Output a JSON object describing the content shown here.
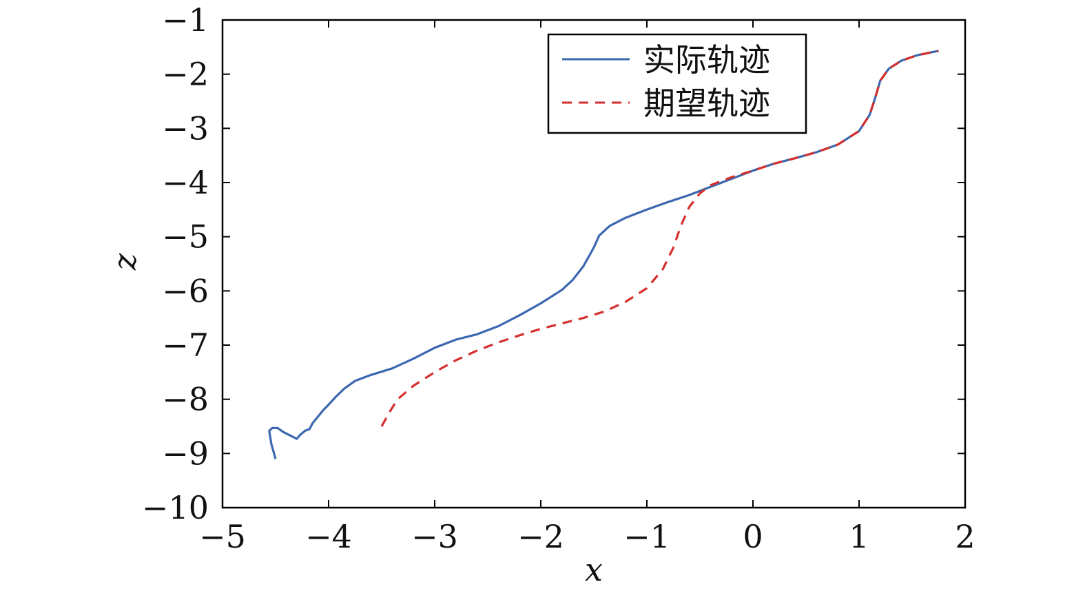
{
  "chart_data": {
    "type": "line",
    "title": "",
    "xlabel": "x",
    "ylabel": "z",
    "xlim": [
      -5,
      2
    ],
    "ylim": [
      -10,
      -1
    ],
    "xticks": [
      -5,
      -4,
      -3,
      -2,
      -1,
      0,
      1,
      2
    ],
    "yticks": [
      -1,
      -2,
      -3,
      -4,
      -5,
      -6,
      -7,
      -8,
      -9,
      -10
    ],
    "xtick_labels": [
      "−5",
      "−4",
      "−3",
      "−2",
      "−1",
      "0",
      "1",
      "2"
    ],
    "ytick_labels": [
      "−1",
      "−2",
      "−3",
      "−4",
      "−5",
      "−6",
      "−7",
      "−8",
      "−9",
      "−10"
    ],
    "grid": false,
    "legend_position": "top-right",
    "series": [
      {
        "name": "实际轨迹",
        "color": "#3a67b0",
        "style": "solid",
        "points": [
          [
            -4.5,
            -9.1
          ],
          [
            -4.54,
            -8.82
          ],
          [
            -4.56,
            -8.58
          ],
          [
            -4.53,
            -8.53
          ],
          [
            -4.48,
            -8.53
          ],
          [
            -4.43,
            -8.6
          ],
          [
            -4.35,
            -8.68
          ],
          [
            -4.3,
            -8.73
          ],
          [
            -4.27,
            -8.66
          ],
          [
            -4.22,
            -8.58
          ],
          [
            -4.18,
            -8.55
          ],
          [
            -4.15,
            -8.44
          ],
          [
            -4.1,
            -8.32
          ],
          [
            -4.05,
            -8.2
          ],
          [
            -4.0,
            -8.1
          ],
          [
            -3.93,
            -7.95
          ],
          [
            -3.85,
            -7.8
          ],
          [
            -3.75,
            -7.66
          ],
          [
            -3.6,
            -7.55
          ],
          [
            -3.4,
            -7.43
          ],
          [
            -3.2,
            -7.25
          ],
          [
            -3.0,
            -7.05
          ],
          [
            -2.8,
            -6.9
          ],
          [
            -2.6,
            -6.8
          ],
          [
            -2.4,
            -6.65
          ],
          [
            -2.2,
            -6.45
          ],
          [
            -2.0,
            -6.23
          ],
          [
            -1.8,
            -5.98
          ],
          [
            -1.7,
            -5.8
          ],
          [
            -1.6,
            -5.55
          ],
          [
            -1.5,
            -5.2
          ],
          [
            -1.45,
            -4.98
          ],
          [
            -1.35,
            -4.8
          ],
          [
            -1.2,
            -4.65
          ],
          [
            -1.0,
            -4.5
          ],
          [
            -0.8,
            -4.36
          ],
          [
            -0.6,
            -4.23
          ],
          [
            -0.4,
            -4.08
          ],
          [
            -0.2,
            -3.93
          ],
          [
            0.0,
            -3.78
          ],
          [
            0.2,
            -3.65
          ],
          [
            0.4,
            -3.55
          ],
          [
            0.6,
            -3.44
          ],
          [
            0.8,
            -3.3
          ],
          [
            1.0,
            -3.05
          ],
          [
            1.1,
            -2.75
          ],
          [
            1.15,
            -2.45
          ],
          [
            1.2,
            -2.12
          ],
          [
            1.28,
            -1.9
          ],
          [
            1.4,
            -1.75
          ],
          [
            1.55,
            -1.65
          ],
          [
            1.75,
            -1.57
          ]
        ]
      },
      {
        "name": "期望轨迹",
        "color": "#d62f2f",
        "style": "dashed",
        "points": [
          [
            -3.5,
            -8.5
          ],
          [
            -3.43,
            -8.25
          ],
          [
            -3.35,
            -8.0
          ],
          [
            -3.2,
            -7.75
          ],
          [
            -3.0,
            -7.5
          ],
          [
            -2.8,
            -7.28
          ],
          [
            -2.6,
            -7.1
          ],
          [
            -2.4,
            -6.95
          ],
          [
            -2.2,
            -6.82
          ],
          [
            -2.0,
            -6.7
          ],
          [
            -1.8,
            -6.6
          ],
          [
            -1.6,
            -6.5
          ],
          [
            -1.4,
            -6.38
          ],
          [
            -1.2,
            -6.2
          ],
          [
            -1.0,
            -5.95
          ],
          [
            -0.85,
            -5.6
          ],
          [
            -0.75,
            -5.2
          ],
          [
            -0.68,
            -4.8
          ],
          [
            -0.6,
            -4.45
          ],
          [
            -0.5,
            -4.2
          ],
          [
            -0.4,
            -4.05
          ],
          [
            -0.2,
            -3.9
          ],
          [
            0.0,
            -3.78
          ],
          [
            0.2,
            -3.65
          ],
          [
            0.4,
            -3.55
          ],
          [
            0.6,
            -3.44
          ],
          [
            0.8,
            -3.3
          ],
          [
            1.0,
            -3.05
          ],
          [
            1.1,
            -2.75
          ],
          [
            1.15,
            -2.45
          ],
          [
            1.2,
            -2.12
          ],
          [
            1.28,
            -1.9
          ],
          [
            1.4,
            -1.75
          ],
          [
            1.55,
            -1.65
          ],
          [
            1.75,
            -1.57
          ]
        ]
      }
    ]
  }
}
